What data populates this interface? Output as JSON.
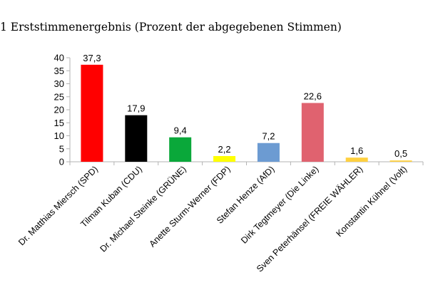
{
  "chart_data": {
    "type": "bar",
    "title": "1 Erststimmenergebnis (Prozent der abgegebenen Stimmen)",
    "xlabel": "",
    "ylabel": "",
    "ylim": [
      0,
      40
    ],
    "yticks": [
      0,
      5,
      10,
      15,
      20,
      25,
      30,
      35,
      40
    ],
    "grid": false,
    "legend": "none",
    "categories": [
      "Dr. Matthias Miersch (SPD)",
      "Tilman Kuban (CDU)",
      "Dr. Michael Steinke (GRÜNE)",
      "Anette Sturm-Werner (FDP)",
      "Stefan Henze (AfD)",
      "Dirk Tegtmeyer (Die Linke)",
      "Sven Peterhänsel (FREIE WÄHLER)",
      "Konstantin Kühnel (Volt)"
    ],
    "values": [
      37.3,
      17.9,
      9.4,
      2.2,
      7.2,
      22.6,
      1.6,
      0.5
    ],
    "value_labels": [
      "37,3",
      "17,9",
      "9,4",
      "2,2",
      "7,2",
      "22,6",
      "1,6",
      "0,5"
    ],
    "colors": [
      "#ff0000",
      "#000000",
      "#0aa83a",
      "#ffff00",
      "#6c9bd2",
      "#e0626f",
      "#ffd040",
      "#ffd040"
    ]
  }
}
